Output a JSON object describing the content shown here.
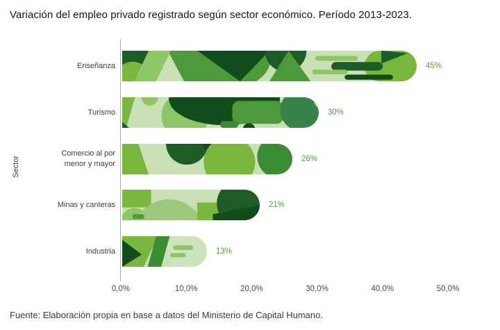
{
  "title": "Variación del empleo privado registrado según sector económico. Período 2013-2023.",
  "source_note": "Fuente: Elaboración propia en base a datos del Ministerio de Capital Humano.",
  "chart_data": {
    "type": "bar",
    "orientation": "horizontal",
    "title": "Variación del empleo privado registrado según sector económico. Período 2013-2023.",
    "xlabel": "",
    "ylabel": "Sector",
    "categories": [
      "Enseñanza",
      "Turismo",
      "Comercio al por menor y mayor",
      "Minas y canteras",
      "Industria"
    ],
    "values": [
      45,
      30,
      26,
      21,
      13
    ],
    "value_labels": [
      "45%",
      "30%",
      "26%",
      "21%",
      "13%"
    ],
    "x_ticks": [
      "0,0%",
      "10,0%",
      "20,0%",
      "30,0%",
      "40,0%",
      "50,0%"
    ],
    "x_tick_values": [
      0,
      10,
      20,
      30,
      40,
      50
    ],
    "xlim": [
      0,
      50
    ],
    "grid": false,
    "legend": false
  },
  "palette": {
    "bar_base": "#c9dfb4",
    "green_pale": "#cde3bb",
    "green_bright": "#79b63d",
    "green_mid": "#4c9a39",
    "green_forest": "#3c8c34",
    "green_sea": "#35824a",
    "green_dark": "#1d5c27",
    "green_darkest": "#124c1c",
    "green_light": "#8fc665",
    "green_soft": "#9cc87e",
    "value_label_color": "#569e34",
    "axis_line_color": "#ababab",
    "title_color": "#141414",
    "text_color": "#3c3c3c",
    "tick_color": "#4a4a4a",
    "source_color": "#3a3a3a"
  }
}
